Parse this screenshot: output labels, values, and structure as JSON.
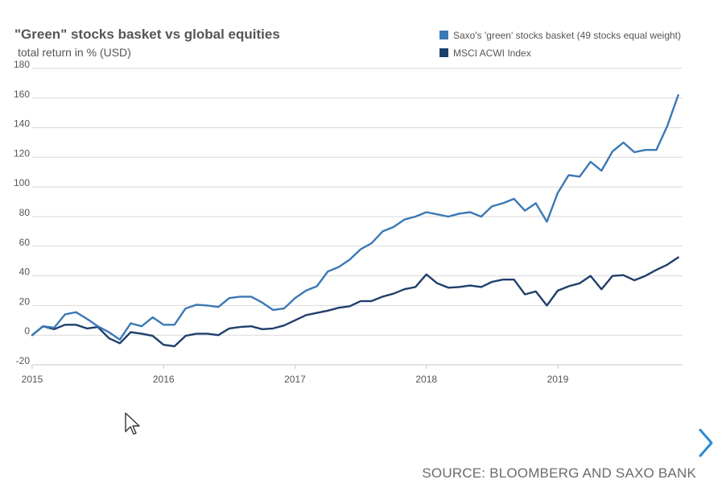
{
  "chart_data": {
    "type": "line",
    "title": "\"Green\" stocks basket vs global equities",
    "subtitle": "total return in % (USD)",
    "xlabel": "",
    "ylabel": "",
    "ylim": [
      -20,
      180
    ],
    "yticks": [
      -20,
      0,
      20,
      40,
      60,
      80,
      100,
      120,
      140,
      160,
      180
    ],
    "xlim": [
      2015.0,
      2019.95
    ],
    "xticks": [
      2015,
      2016,
      2017,
      2018,
      2019
    ],
    "xtick_labels": [
      "2015",
      "2016",
      "2017",
      "2018",
      "2019"
    ],
    "legend_position": "top-right",
    "grid": true,
    "x": [
      2015.0,
      2015.083,
      2015.167,
      2015.25,
      2015.333,
      2015.417,
      2015.5,
      2015.583,
      2015.667,
      2015.75,
      2015.833,
      2015.917,
      2016.0,
      2016.083,
      2016.167,
      2016.25,
      2016.333,
      2016.417,
      2016.5,
      2016.583,
      2016.667,
      2016.75,
      2016.833,
      2016.917,
      2017.0,
      2017.083,
      2017.167,
      2017.25,
      2017.333,
      2017.417,
      2017.5,
      2017.583,
      2017.667,
      2017.75,
      2017.833,
      2017.917,
      2018.0,
      2018.083,
      2018.167,
      2018.25,
      2018.333,
      2018.417,
      2018.5,
      2018.583,
      2018.667,
      2018.75,
      2018.833,
      2018.917,
      2019.0,
      2019.083,
      2019.167,
      2019.25,
      2019.333,
      2019.417,
      2019.5,
      2019.583,
      2019.667,
      2019.75,
      2019.833,
      2019.917
    ],
    "series": [
      {
        "name": "Saxo's 'green' stocks basket (49 stocks equal weight)",
        "color": "#3b78b6",
        "values": [
          0,
          6,
          5,
          14,
          15.5,
          11,
          6,
          2,
          -3,
          8,
          6,
          12,
          7,
          7,
          18,
          20.5,
          20,
          19,
          25,
          26,
          26,
          22,
          17,
          18,
          25,
          30,
          33,
          43,
          46,
          51,
          58,
          62,
          70,
          73,
          78,
          80,
          83,
          81.5,
          80,
          82,
          83,
          80,
          87,
          89,
          92,
          84,
          89,
          76.5,
          96,
          108,
          107,
          117,
          111,
          124,
          130,
          123.5,
          125,
          125,
          141,
          162
        ]
      },
      {
        "name": "MSCI ACWI Index",
        "color": "#1f3f6b",
        "values": [
          0,
          6,
          4,
          7,
          7,
          4.5,
          5.5,
          -2,
          -5.5,
          2,
          1,
          -0.5,
          -6.5,
          -7.5,
          -0.5,
          1,
          1,
          0,
          4.5,
          5.5,
          6,
          4,
          4.5,
          6.5,
          10,
          13.5,
          15,
          16.5,
          18.5,
          19.5,
          23,
          23,
          26,
          28,
          31,
          32.5,
          41,
          35,
          32,
          32.5,
          33.5,
          32.5,
          36,
          37.5,
          37.5,
          27.5,
          29.5,
          20,
          30,
          33,
          35,
          40,
          31,
          40,
          40.5,
          37,
          40,
          44,
          47.5,
          52.5
        ]
      }
    ]
  },
  "source_text": "SOURCE: BLOOMBERG AND SAXO BANK",
  "icons": {
    "next": "chevron-right-icon",
    "cursor": "mouse-pointer-icon"
  }
}
